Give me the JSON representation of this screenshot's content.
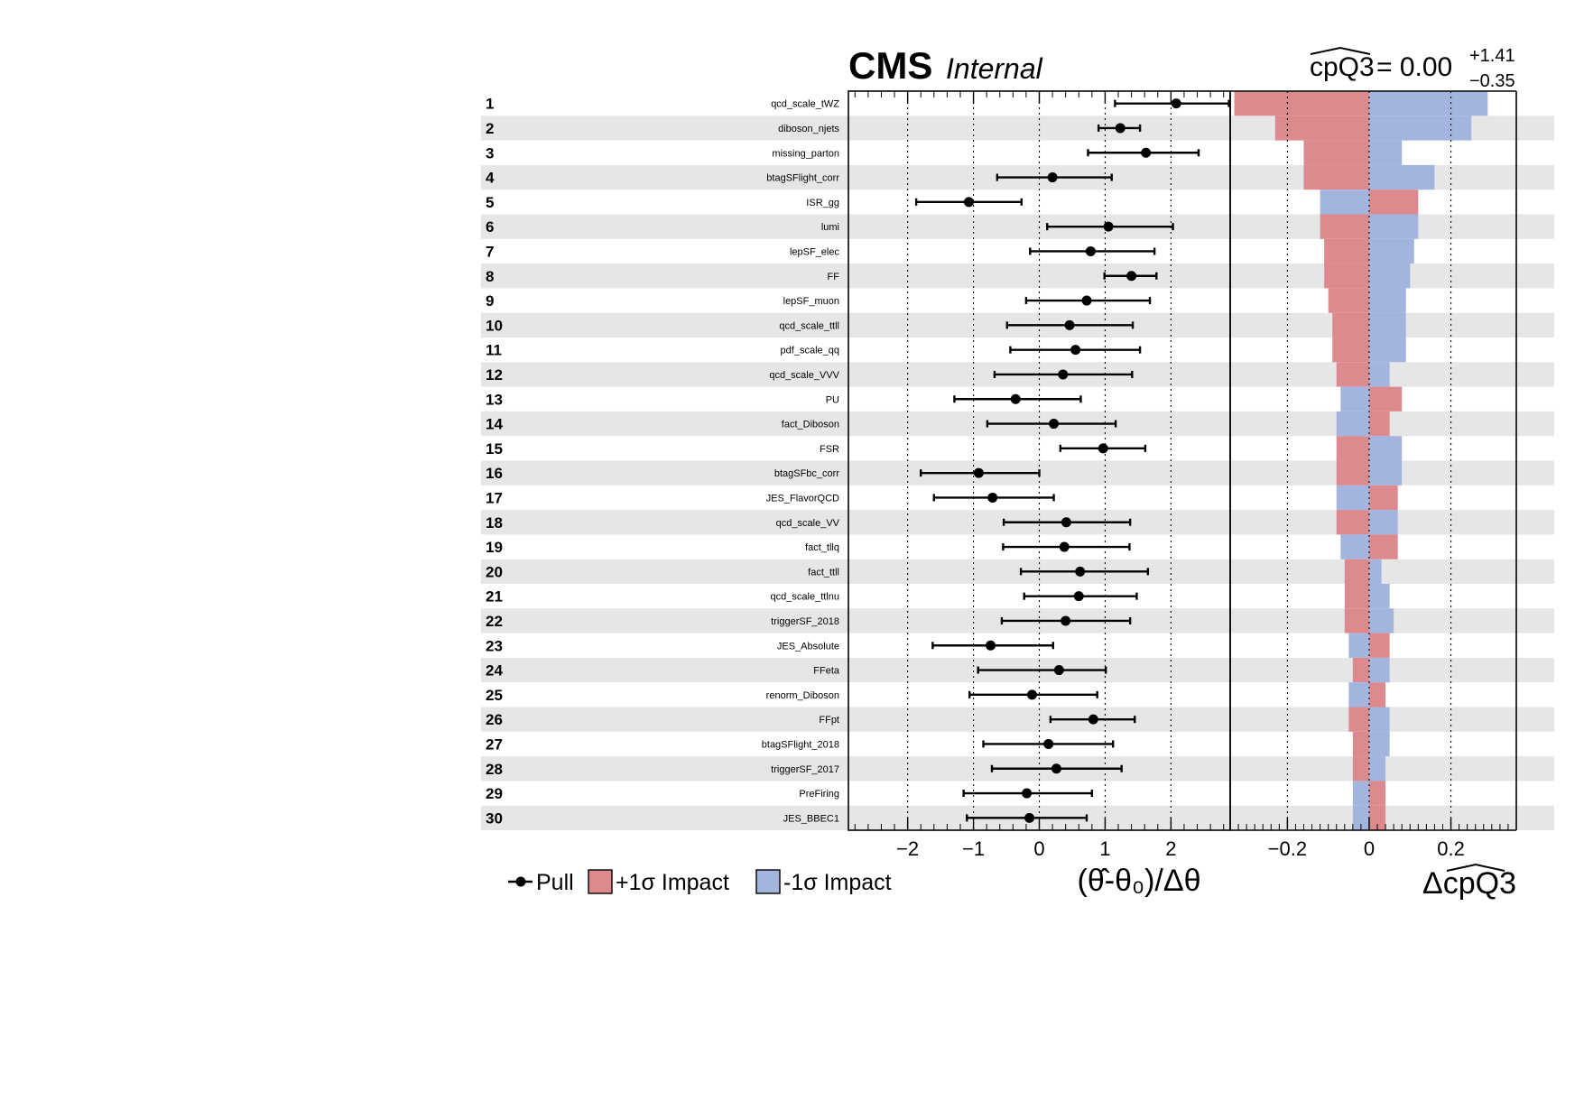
{
  "header": {
    "experiment": "CMS",
    "status": "Internal",
    "poi_name": "cpQ3",
    "poi_value": "= 0.00",
    "poi_err_up": "+1.41",
    "poi_err_down": "−0.35"
  },
  "legend": {
    "pull": "Pull",
    "impact_up": "+1σ Impact",
    "impact_down": "-1σ Impact"
  },
  "colors": {
    "impact_up": "#dd8a8e",
    "impact_down": "#a3b5df",
    "band": "#e6e6e6"
  },
  "chart_data": [
    {
      "type": "scatter",
      "name": "pulls",
      "xlabel": "(θ̂-θ₀)/Δθ",
      "xlim": [
        -2.9,
        2.9
      ],
      "xticks": [
        -2,
        -1,
        0,
        1,
        2
      ],
      "xtick_labels": [
        "−2",
        "−1",
        "0",
        "1",
        "2"
      ],
      "grid": "dotted vertical lines at -2, -1, 0, 1, 2",
      "labels": [
        "qcd_scale_tWZ",
        "diboson_njets",
        "missing_parton",
        "btagSFlight_corr",
        "ISR_gg",
        "lumi",
        "lepSF_elec",
        "FF",
        "lepSF_muon",
        "qcd_scale_ttll",
        "pdf_scale_qq",
        "qcd_scale_VVV",
        "PU",
        "fact_Diboson",
        "FSR",
        "btagSFbc_corr",
        "JES_FlavorQCD",
        "qcd_scale_VV",
        "fact_tllq",
        "fact_ttll",
        "qcd_scale_ttlnu",
        "triggerSF_2018",
        "JES_Absolute",
        "FFeta",
        "renorm_Diboson",
        "FFpt",
        "btagSFlight_2018",
        "triggerSF_2017",
        "PreFiring",
        "JES_BBEC1"
      ],
      "pull": [
        2.08,
        1.23,
        1.62,
        0.2,
        -1.07,
        1.05,
        0.78,
        1.4,
        0.72,
        0.46,
        0.55,
        0.36,
        -0.36,
        0.22,
        0.97,
        -0.92,
        -0.71,
        0.41,
        0.38,
        0.62,
        0.6,
        0.4,
        -0.74,
        0.3,
        -0.11,
        0.82,
        0.14,
        0.26,
        -0.19,
        -0.15
      ],
      "err_low": [
        0.93,
        0.33,
        0.88,
        0.84,
        0.8,
        0.93,
        0.92,
        0.41,
        0.92,
        0.95,
        0.99,
        1.04,
        0.93,
        1.01,
        0.65,
        0.88,
        0.89,
        0.95,
        0.93,
        0.9,
        0.83,
        0.97,
        0.88,
        1.23,
        0.95,
        0.65,
        0.99,
        0.98,
        0.96,
        0.95
      ],
      "err_high": [
        0.8,
        0.3,
        0.8,
        0.9,
        0.8,
        0.98,
        0.97,
        0.38,
        0.96,
        0.96,
        0.98,
        1.05,
        0.99,
        0.94,
        0.64,
        0.92,
        0.93,
        0.97,
        0.99,
        1.03,
        0.88,
        0.98,
        0.95,
        0.71,
        0.99,
        0.63,
        0.98,
        0.99,
        0.99,
        0.87
      ]
    },
    {
      "type": "bar",
      "name": "impacts",
      "xlabel": "ΔcpQ3",
      "xlim": [
        -0.34,
        0.36
      ],
      "xticks": [
        -0.2,
        0,
        0.2
      ],
      "xtick_labels": [
        "−0.2",
        "0",
        "0.2"
      ],
      "grid": "dotted vertical lines at -0.2, 0, 0.2",
      "series": [
        {
          "name": "+1σ Impact",
          "values": [
            -0.33,
            -0.23,
            -0.16,
            -0.16,
            0.12,
            -0.12,
            -0.11,
            -0.11,
            -0.1,
            -0.09,
            -0.09,
            -0.08,
            0.08,
            0.05,
            -0.08,
            -0.08,
            0.07,
            -0.08,
            0.07,
            -0.06,
            -0.06,
            -0.06,
            0.05,
            -0.04,
            0.04,
            -0.05,
            -0.04,
            -0.04,
            0.04,
            0.04
          ]
        },
        {
          "name": "-1σ Impact",
          "values": [
            0.29,
            0.25,
            0.08,
            0.16,
            -0.12,
            0.12,
            0.11,
            0.1,
            0.09,
            0.09,
            0.09,
            0.05,
            -0.07,
            -0.08,
            0.08,
            0.08,
            -0.08,
            0.07,
            -0.07,
            0.03,
            0.05,
            0.06,
            -0.05,
            0.05,
            -0.05,
            0.05,
            0.05,
            0.04,
            -0.04,
            -0.04
          ]
        }
      ]
    }
  ]
}
